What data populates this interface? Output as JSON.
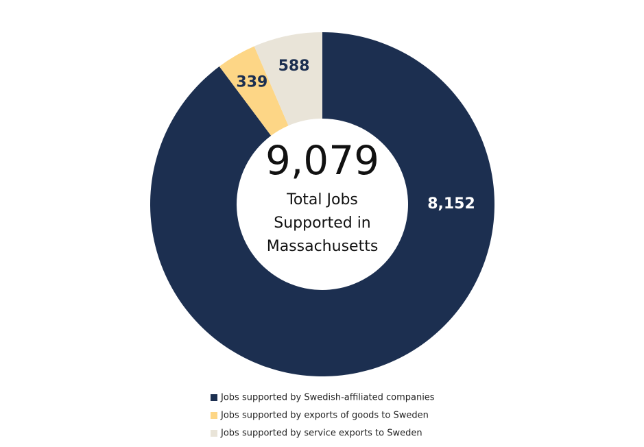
{
  "chart_data": {
    "type": "donut",
    "categories": [
      "Jobs supported by Swedish-affiliated companies",
      "Jobs supported by exports of goods to Sweden",
      "Jobs supported by service exports to Sweden"
    ],
    "values": [
      8152,
      339,
      588
    ],
    "value_labels": [
      "8,152",
      "339",
      "588"
    ],
    "colors": [
      "#1c2f50",
      "#fdd686",
      "#e9e4d8"
    ],
    "center_value": "9,079",
    "center_text": [
      "Total Jobs",
      "Supported in",
      "Massachusetts"
    ]
  }
}
